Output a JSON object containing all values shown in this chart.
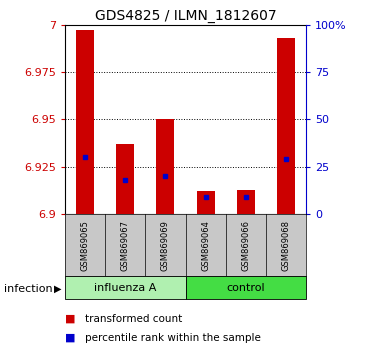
{
  "title": "GDS4825 / ILMN_1812607",
  "samples": [
    "GSM869065",
    "GSM869067",
    "GSM869069",
    "GSM869064",
    "GSM869066",
    "GSM869068"
  ],
  "red_values": [
    6.997,
    6.937,
    6.95,
    6.912,
    6.913,
    6.993
  ],
  "blue_values": [
    6.93,
    6.918,
    6.92,
    6.909,
    6.909,
    6.929
  ],
  "ymin": 6.9,
  "ymax": 7.0,
  "yticks": [
    6.9,
    6.925,
    6.95,
    6.975,
    7.0
  ],
  "ytick_labels": [
    "6.9",
    "6.925",
    "6.95",
    "6.975",
    "7"
  ],
  "right_yticks": [
    0,
    25,
    50,
    75,
    100
  ],
  "right_ytick_labels": [
    "0",
    "25",
    "50",
    "75",
    "100%"
  ],
  "bar_color": "#CC0000",
  "dot_color": "#0000CC",
  "left_tick_color": "#CC0000",
  "right_tick_color": "#0000CC",
  "label_box_color": "#C8C8C8",
  "influenza_color": "#B0F0B0",
  "control_color": "#44DD44",
  "legend_red_label": "transformed count",
  "legend_blue_label": "percentile rank within the sample",
  "infection_label": "infection",
  "bar_width": 0.45,
  "title_fontsize": 10,
  "axis_fontsize": 8,
  "sample_fontsize": 6,
  "group_fontsize": 8,
  "legend_fontsize": 7.5
}
